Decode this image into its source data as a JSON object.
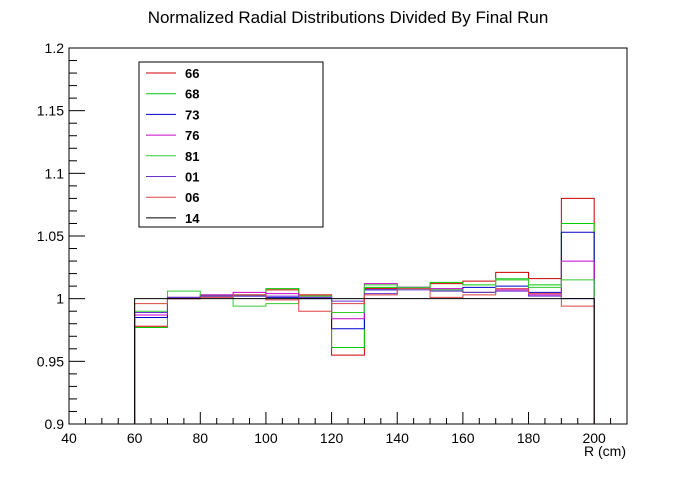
{
  "chart_data": {
    "type": "line",
    "title": "Normalized Radial Distributions Divided By Final Run",
    "xlabel": "R (cm)",
    "ylabel": "",
    "xlim": [
      40,
      210
    ],
    "ylim": [
      0.9,
      1.2
    ],
    "x_ticks": [
      40,
      60,
      80,
      100,
      120,
      140,
      160,
      180,
      200
    ],
    "y_ticks": [
      0.9,
      0.95,
      1,
      1.05,
      1.1,
      1.15,
      1.2
    ],
    "x_tick_labels": [
      "40",
      "60",
      "80",
      "100",
      "120",
      "140",
      "160",
      "180",
      "200"
    ],
    "y_tick_labels": [
      "0.9",
      "0.95",
      "1",
      "1.05",
      "1.1",
      "1.15",
      "1.2"
    ],
    "bin_edges": [
      60,
      70,
      80,
      90,
      100,
      110,
      120,
      130,
      140,
      150,
      160,
      170,
      180,
      190,
      200
    ],
    "baseline": 0.9,
    "legend_position": "top-left",
    "grid": false,
    "series": [
      {
        "name": "66",
        "color": "#cc0000",
        "values": [
          0.978,
          1.0,
          1.002,
          1.003,
          1.007,
          1.003,
          0.955,
          1.008,
          1.009,
          1.012,
          1.014,
          1.021,
          1.016,
          1.08
        ]
      },
      {
        "name": "68",
        "color": "#00cc00",
        "values": [
          0.977,
          1.001,
          1.003,
          1.003,
          1.008,
          1.002,
          0.961,
          1.009,
          1.008,
          1.013,
          1.011,
          1.015,
          1.011,
          1.06
        ]
      },
      {
        "name": "73",
        "color": "#0000cc",
        "values": [
          0.985,
          1.0,
          1.002,
          1.002,
          1.001,
          1.0,
          0.976,
          1.007,
          1.009,
          1.007,
          1.009,
          1.01,
          1.005,
          1.053
        ]
      },
      {
        "name": "76",
        "color": "#cc00cc",
        "values": [
          0.987,
          1.001,
          1.003,
          1.005,
          1.004,
          1.001,
          0.984,
          1.012,
          1.009,
          1.008,
          1.005,
          1.007,
          1.003,
          1.03
        ]
      },
      {
        "name": "81",
        "color": "#33cc33",
        "values": [
          0.99,
          1.006,
          1.002,
          0.994,
          0.996,
          1.002,
          0.989,
          1.011,
          1.009,
          1.007,
          1.005,
          1.016,
          1.009,
          1.015
        ]
      },
      {
        "name": "01",
        "color": "#6633cc",
        "values": [
          0.989,
          1.001,
          1.002,
          1.002,
          1.002,
          1.001,
          0.998,
          1.004,
          1.007,
          1.006,
          1.005,
          1.006,
          1.002,
          1.0
        ]
      },
      {
        "name": "06",
        "color": "#dd4444",
        "values": [
          0.996,
          1.0,
          1.001,
          1.003,
          0.999,
          0.99,
          0.996,
          1.003,
          1.008,
          1.001,
          1.003,
          1.008,
          1.004,
          0.994
        ]
      },
      {
        "name": "14",
        "color": "#000000",
        "values": [
          1.0,
          1.0,
          1.0,
          1.0,
          1.0,
          1.0,
          1.0,
          1.0,
          1.0,
          1.0,
          1.0,
          1.0,
          1.0,
          1.0
        ]
      }
    ]
  }
}
